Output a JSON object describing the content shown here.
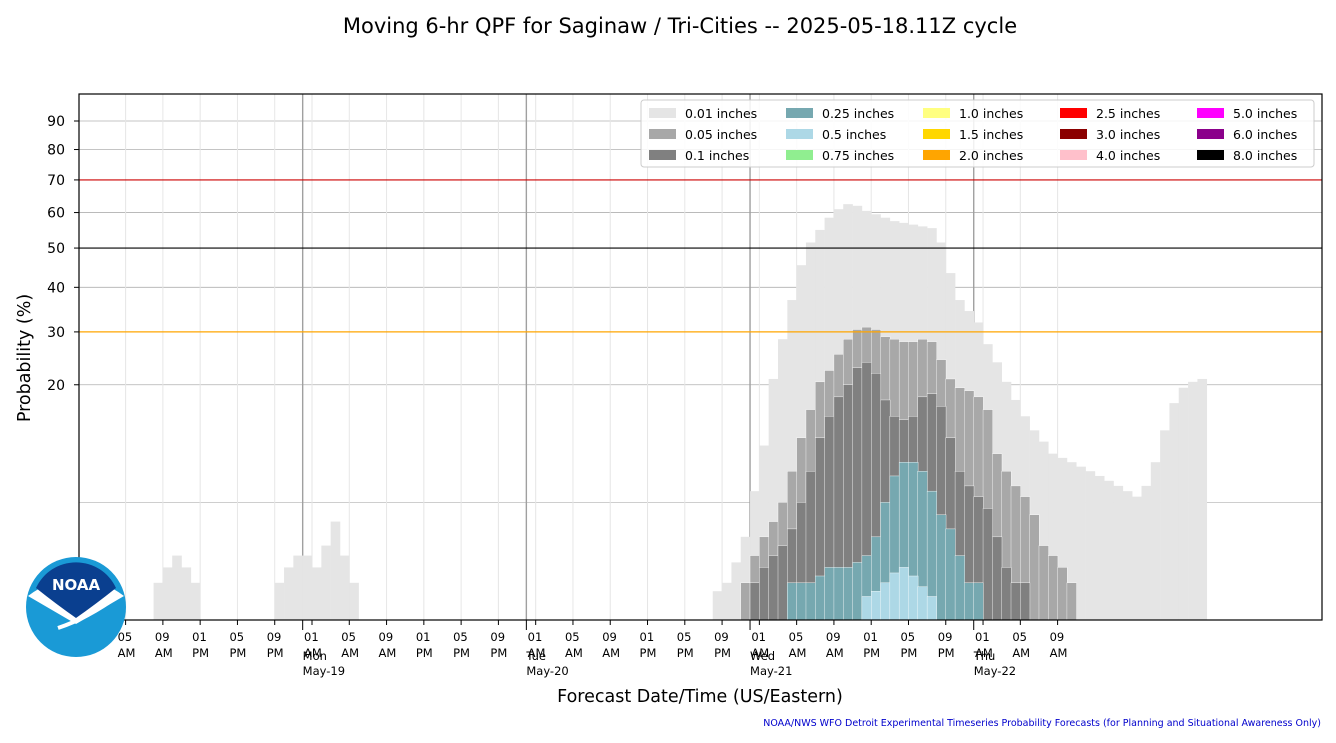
{
  "chart_data": {
    "type": "bar",
    "title": "Moving 6-hr QPF for Saginaw / Tri-Cities -- 2025-05-18.11Z cycle",
    "xlabel": "Forecast Date/Time (US/Eastern)",
    "ylabel": "Probability (%)",
    "y_scale": "sqrt",
    "ylim": [
      0,
      100
    ],
    "yticks": [
      20,
      30,
      40,
      50,
      60,
      70,
      80,
      90
    ],
    "grid": true,
    "legend_position": "top-right",
    "x_start": "2025-05-18 00:00",
    "x_hour_step": 1,
    "x_tick_labels": [
      {
        "time": "2025-05-18 05:00",
        "hour": "05",
        "ampm": "AM"
      },
      {
        "time": "2025-05-18 09:00",
        "hour": "09",
        "ampm": "AM"
      },
      {
        "time": "2025-05-18 13:00",
        "hour": "01",
        "ampm": "PM"
      },
      {
        "time": "2025-05-18 17:00",
        "hour": "05",
        "ampm": "PM"
      },
      {
        "time": "2025-05-18 21:00",
        "hour": "09",
        "ampm": "PM"
      },
      {
        "time": "2025-05-19 01:00",
        "hour": "01",
        "ampm": "AM"
      },
      {
        "time": "2025-05-19 05:00",
        "hour": "05",
        "ampm": "AM"
      },
      {
        "time": "2025-05-19 09:00",
        "hour": "09",
        "ampm": "AM"
      },
      {
        "time": "2025-05-19 13:00",
        "hour": "01",
        "ampm": "PM"
      },
      {
        "time": "2025-05-19 17:00",
        "hour": "05",
        "ampm": "PM"
      },
      {
        "time": "2025-05-19 21:00",
        "hour": "09",
        "ampm": "PM"
      },
      {
        "time": "2025-05-20 01:00",
        "hour": "01",
        "ampm": "AM"
      },
      {
        "time": "2025-05-20 05:00",
        "hour": "05",
        "ampm": "AM"
      },
      {
        "time": "2025-05-20 09:00",
        "hour": "09",
        "ampm": "AM"
      },
      {
        "time": "2025-05-20 13:00",
        "hour": "01",
        "ampm": "PM"
      },
      {
        "time": "2025-05-20 17:00",
        "hour": "05",
        "ampm": "PM"
      },
      {
        "time": "2025-05-20 21:00",
        "hour": "09",
        "ampm": "PM"
      },
      {
        "time": "2025-05-21 01:00",
        "hour": "01",
        "ampm": "AM"
      },
      {
        "time": "2025-05-21 05:00",
        "hour": "05",
        "ampm": "AM"
      },
      {
        "time": "2025-05-21 09:00",
        "hour": "09",
        "ampm": "AM"
      },
      {
        "time": "2025-05-21 13:00",
        "hour": "01",
        "ampm": "PM"
      },
      {
        "time": "2025-05-21 17:00",
        "hour": "05",
        "ampm": "PM"
      },
      {
        "time": "2025-05-21 21:00",
        "hour": "09",
        "ampm": "PM"
      },
      {
        "time": "2025-05-22 01:00",
        "hour": "01",
        "ampm": "AM"
      },
      {
        "time": "2025-05-22 05:00",
        "hour": "05",
        "ampm": "AM"
      },
      {
        "time": "2025-05-22 09:00",
        "hour": "09",
        "ampm": "AM"
      }
    ],
    "day_markers": [
      {
        "time": "2025-05-19 00:00",
        "day": "Mon",
        "date": "May-19"
      },
      {
        "time": "2025-05-20 00:00",
        "day": "Tue",
        "date": "May-20"
      },
      {
        "time": "2025-05-21 00:00",
        "day": "Wed",
        "date": "May-21"
      },
      {
        "time": "2025-05-22 00:00",
        "day": "Thu",
        "date": "May-22"
      }
    ],
    "reference_lines": [
      {
        "y": 30,
        "color": "#ffa500"
      },
      {
        "y": 50,
        "color": "#000000"
      },
      {
        "y": 70,
        "color": "#cc0000"
      }
    ],
    "series": [
      {
        "name": "0.01 inches",
        "color": "#e5e5e5",
        "values": [
          0,
          0,
          0,
          0,
          0,
          0,
          0,
          0,
          0.5,
          1,
          1.5,
          1,
          0.5,
          0,
          0,
          0,
          0,
          0,
          0,
          0,
          0,
          0.5,
          1,
          1.5,
          1.5,
          1,
          2,
          3.5,
          1.5,
          0.5,
          0,
          0,
          0,
          0,
          0,
          0,
          0,
          0,
          0,
          0,
          0,
          0,
          0,
          0,
          0,
          0,
          0,
          0,
          0,
          0,
          0,
          0,
          0,
          0,
          0,
          0,
          0,
          0,
          0,
          0,
          0,
          0,
          0,
          0,
          0,
          0,
          0,
          0,
          0.3,
          0.5,
          1.2,
          2.5,
          6,
          11,
          21,
          28.5,
          37,
          45.5,
          51.5,
          55,
          58.5,
          61,
          62.5,
          62,
          60.5,
          59.5,
          58.5,
          57.5,
          57,
          56.5,
          56,
          55.5,
          51.5,
          43.5,
          37,
          34.5,
          32,
          27.5,
          24,
          20.5,
          17.5,
          15,
          13,
          11.5,
          10,
          9.5,
          9,
          8.5,
          8,
          7.5,
          7,
          6.5,
          6,
          5.5,
          6.5,
          9,
          13,
          17,
          19.5,
          20.5,
          21
        ]
      },
      {
        "name": "0.05 inches",
        "color": "#a8a8a8",
        "values": [
          0,
          0,
          0,
          0,
          0,
          0,
          0,
          0,
          0,
          0,
          0,
          0,
          0,
          0,
          0,
          0,
          0,
          0,
          0,
          0,
          0,
          0,
          0,
          0,
          0,
          0,
          0,
          0,
          0,
          0,
          0,
          0,
          0,
          0,
          0,
          0,
          0,
          0,
          0,
          0,
          0,
          0,
          0,
          0,
          0,
          0,
          0,
          0,
          0,
          0,
          0,
          0,
          0,
          0,
          0,
          0,
          0,
          0,
          0,
          0,
          0,
          0,
          0,
          0,
          0,
          0,
          0,
          0,
          0,
          0,
          0,
          0.5,
          1.5,
          2.5,
          3.5,
          5,
          8,
          12,
          16,
          20.5,
          22.5,
          25.5,
          28.5,
          30.5,
          31,
          30.5,
          29,
          28.5,
          28,
          28,
          28.5,
          28,
          24.5,
          21,
          19.5,
          19,
          18,
          16,
          10,
          8,
          6.5,
          5.5,
          4,
          2,
          1.5,
          1,
          0.5,
          0,
          0,
          0,
          0,
          0,
          0,
          0,
          0,
          0,
          0,
          0,
          0,
          0,
          0,
          0,
          0,
          0
        ]
      },
      {
        "name": "0.1 inches",
        "color": "#808080",
        "values": [
          0,
          0,
          0,
          0,
          0,
          0,
          0,
          0,
          0,
          0,
          0,
          0,
          0,
          0,
          0,
          0,
          0,
          0,
          0,
          0,
          0,
          0,
          0,
          0,
          0,
          0,
          0,
          0,
          0,
          0,
          0,
          0,
          0,
          0,
          0,
          0,
          0,
          0,
          0,
          0,
          0,
          0,
          0,
          0,
          0,
          0,
          0,
          0,
          0,
          0,
          0,
          0,
          0,
          0,
          0,
          0,
          0,
          0,
          0,
          0,
          0,
          0,
          0,
          0,
          0,
          0,
          0,
          0,
          0,
          0,
          0,
          0,
          0.5,
          1,
          1.5,
          2,
          3,
          5,
          8,
          12,
          15,
          18,
          20,
          23,
          24,
          22,
          17.5,
          15,
          14.5,
          15,
          18,
          18.5,
          16.5,
          12,
          8,
          6.5,
          5.5,
          4.5,
          2.5,
          1,
          0.5,
          0.5,
          0,
          0,
          0,
          0,
          0,
          0,
          0,
          0,
          0,
          0,
          0,
          0,
          0,
          0,
          0,
          0,
          0,
          0,
          0,
          0,
          0,
          0
        ]
      },
      {
        "name": "0.25 inches",
        "color": "#76a8b0",
        "values": [
          0,
          0,
          0,
          0,
          0,
          0,
          0,
          0,
          0,
          0,
          0,
          0,
          0,
          0,
          0,
          0,
          0,
          0,
          0,
          0,
          0,
          0,
          0,
          0,
          0,
          0,
          0,
          0,
          0,
          0,
          0,
          0,
          0,
          0,
          0,
          0,
          0,
          0,
          0,
          0,
          0,
          0,
          0,
          0,
          0,
          0,
          0,
          0,
          0,
          0,
          0,
          0,
          0,
          0,
          0,
          0,
          0,
          0,
          0,
          0,
          0,
          0,
          0,
          0,
          0,
          0,
          0,
          0,
          0,
          0,
          0,
          0,
          0,
          0,
          0,
          0,
          0.5,
          0.5,
          0.5,
          0.7,
          1,
          1,
          1,
          1.2,
          1.5,
          2.5,
          5,
          7.5,
          9,
          9,
          8,
          6,
          4,
          3,
          1.5,
          0.5,
          0.5,
          0,
          0,
          0,
          0,
          0,
          0,
          0,
          0,
          0,
          0,
          0,
          0,
          0,
          0,
          0,
          0,
          0,
          0,
          0,
          0,
          0,
          0,
          0,
          0,
          0,
          0,
          0,
          0,
          0
        ]
      },
      {
        "name": "0.5 inches",
        "color": "#add8e6",
        "values": [
          0,
          0,
          0,
          0,
          0,
          0,
          0,
          0,
          0,
          0,
          0,
          0,
          0,
          0,
          0,
          0,
          0,
          0,
          0,
          0,
          0,
          0,
          0,
          0,
          0,
          0,
          0,
          0,
          0,
          0,
          0,
          0,
          0,
          0,
          0,
          0,
          0,
          0,
          0,
          0,
          0,
          0,
          0,
          0,
          0,
          0,
          0,
          0,
          0,
          0,
          0,
          0,
          0,
          0,
          0,
          0,
          0,
          0,
          0,
          0,
          0,
          0,
          0,
          0,
          0,
          0,
          0,
          0,
          0,
          0,
          0,
          0,
          0,
          0,
          0,
          0,
          0,
          0,
          0,
          0,
          0,
          0,
          0,
          0,
          0.2,
          0.3,
          0.5,
          0.8,
          1,
          0.7,
          0.4,
          0.2,
          0,
          0,
          0,
          0,
          0,
          0,
          0,
          0,
          0,
          0,
          0,
          0,
          0,
          0,
          0,
          0,
          0,
          0,
          0,
          0,
          0,
          0,
          0,
          0,
          0,
          0,
          0,
          0,
          0,
          0,
          0,
          0,
          0,
          0,
          0,
          0,
          0,
          0
        ]
      },
      {
        "name": "0.75 inches",
        "color": "#90ee90",
        "values": []
      },
      {
        "name": "1.0 inches",
        "color": "#ffff80",
        "values": []
      },
      {
        "name": "1.5 inches",
        "color": "#ffd700",
        "values": []
      },
      {
        "name": "2.0 inches",
        "color": "#ffa500",
        "values": []
      },
      {
        "name": "2.5 inches",
        "color": "#ff0000",
        "values": []
      },
      {
        "name": "3.0 inches",
        "color": "#8b0000",
        "values": []
      },
      {
        "name": "4.0 inches",
        "color": "#ffc0cb",
        "values": []
      },
      {
        "name": "5.0 inches",
        "color": "#ff00ff",
        "values": []
      },
      {
        "name": "6.0 inches",
        "color": "#8b008b",
        "values": []
      },
      {
        "name": "8.0 inches",
        "color": "#000000",
        "values": []
      }
    ],
    "footer": "NOAA/NWS WFO Detroit Experimental Timeseries Probability Forecasts (for Planning and Situational Awareness Only)",
    "logo_text": "NOAA",
    "footer_color": "#0000cc"
  }
}
